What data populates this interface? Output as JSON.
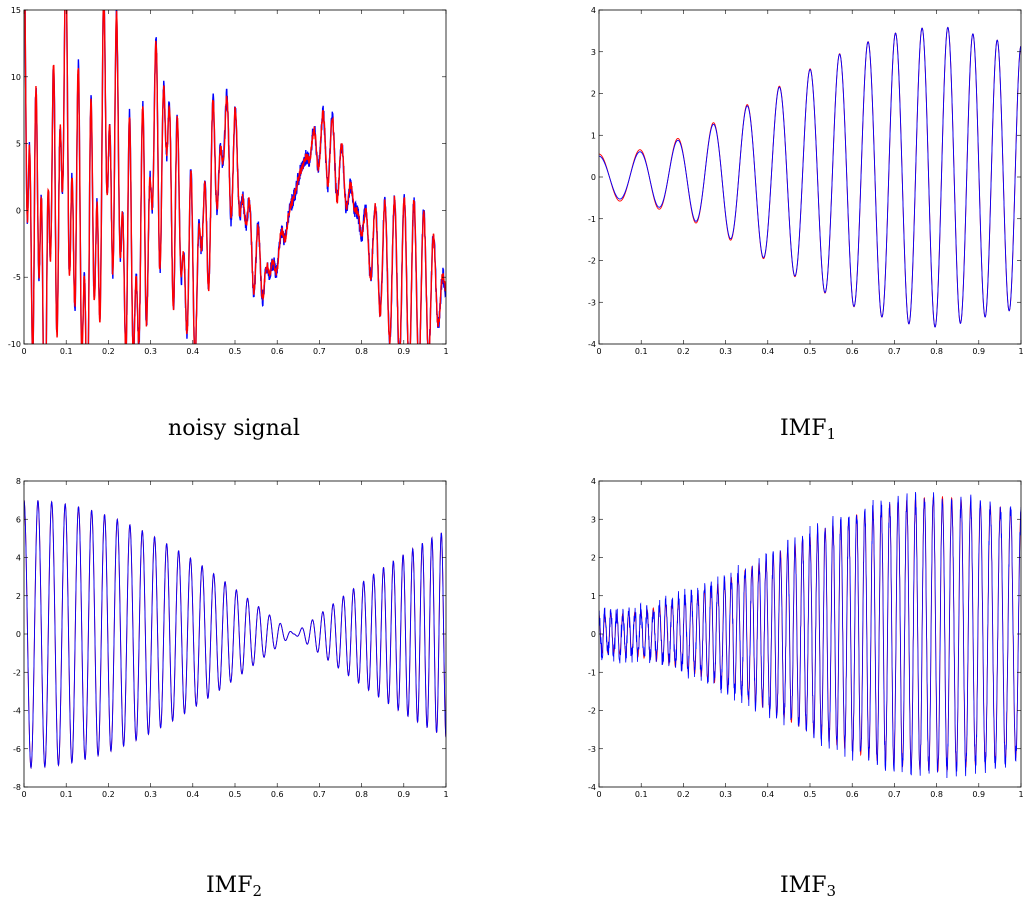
{
  "colors": {
    "estimate": "#ff0000",
    "original": "#0000ff",
    "axes": "#000000"
  },
  "captions": [
    {
      "text": "noisy signal",
      "sub": ""
    },
    {
      "text": "IMF",
      "sub": "1"
    },
    {
      "text": "IMF",
      "sub": "2"
    },
    {
      "text": "IMF",
      "sub": "3"
    }
  ],
  "chart_data": [
    {
      "type": "line",
      "title": "",
      "xlim": [
        0,
        1
      ],
      "ylim": [
        -10,
        15
      ],
      "x_ticks": [
        0,
        0.1,
        0.2,
        0.3,
        0.4,
        0.5,
        0.6,
        0.7,
        0.8,
        0.9,
        1
      ],
      "y_ticks": [
        -10,
        -5,
        0,
        5,
        10,
        15
      ],
      "grid": false,
      "series": [
        {
          "color": "#0000ff",
          "components": [
            {
              "a0": 6.0,
              "a1": -3.0,
              "f0": 11,
              "f1": 0
            },
            {
              "a0": 7.0,
              "a1": -8.0,
              "f0": 30,
              "f1": 45
            },
            {
              "a0": 0.5,
              "a1": 1.5,
              "f0": 72,
              "f1": 40
            }
          ],
          "noise": 0.6,
          "stroke_width": 1.4
        },
        {
          "color": "#ff0000",
          "components": [
            {
              "a0": 6.0,
              "a1": -3.0,
              "f0": 11,
              "f1": 0
            },
            {
              "a0": 7.0,
              "a1": -8.0,
              "f0": 30,
              "f1": 45
            },
            {
              "a0": 0.5,
              "a1": 1.5,
              "f0": 72,
              "f1": 40
            }
          ],
          "noise": 0.3,
          "stroke_width": 1.4
        }
      ]
    },
    {
      "type": "line",
      "title": "",
      "xlim": [
        0,
        1
      ],
      "ylim": [
        -4,
        4
      ],
      "x_ticks": [
        0,
        0.1,
        0.2,
        0.3,
        0.4,
        0.5,
        0.6,
        0.7,
        0.8,
        0.9,
        1
      ],
      "y_ticks": [
        -4,
        -3,
        -2,
        -1,
        0,
        1,
        2,
        3,
        4
      ],
      "grid": false,
      "series": [
        {
          "color": "#ff0000",
          "components": [
            {
              "a0": 0.55,
              "a1": 5.0,
              "f0": 10,
              "f1": 18,
              "envelope": "bell",
              "end": 2.6
            }
          ],
          "noise": 0,
          "stroke_width": 0.9
        },
        {
          "color": "#0000ff",
          "components": [
            {
              "a0": 0.5,
              "a1": 5.0,
              "f0": 10,
              "f1": 18,
              "envelope": "bell",
              "end": 2.6
            }
          ],
          "noise": 0,
          "stroke_width": 0.9
        }
      ]
    },
    {
      "type": "line",
      "title": "",
      "xlim": [
        0,
        1
      ],
      "ylim": [
        -8,
        8
      ],
      "x_ticks": [
        0,
        0.1,
        0.2,
        0.3,
        0.4,
        0.5,
        0.6,
        0.7,
        0.8,
        0.9,
        1
      ],
      "y_ticks": [
        -8,
        -6,
        -4,
        -2,
        0,
        2,
        4,
        6,
        8
      ],
      "grid": false,
      "series": [
        {
          "color": "#ff0000",
          "components": [
            {
              "a0": 7.0,
              "a1": -8.0,
              "f0": 30,
              "f1": 45
            }
          ],
          "noise": 0,
          "stroke_width": 0.9
        },
        {
          "color": "#0000ff",
          "components": [
            {
              "a0": 7.0,
              "a1": -8.0,
              "f0": 30,
              "f1": 45
            }
          ],
          "noise": 0,
          "stroke_width": 0.9
        }
      ]
    },
    {
      "type": "line",
      "title": "",
      "xlim": [
        0,
        1
      ],
      "ylim": [
        -4,
        4
      ],
      "x_ticks": [
        0,
        0.1,
        0.2,
        0.3,
        0.4,
        0.5,
        0.6,
        0.7,
        0.8,
        0.9,
        1
      ],
      "y_ticks": [
        -4,
        -3,
        -2,
        -1,
        0,
        1,
        2,
        3,
        4
      ],
      "grid": false,
      "series": [
        {
          "color": "#ff0000",
          "components": [
            {
              "a0": 0.5,
              "a1": 6.5,
              "f0": 72,
              "f1": 40,
              "envelope": "bell",
              "end": 2.2
            }
          ],
          "noise": 0,
          "stroke_width": 0.8
        },
        {
          "color": "#0000ff",
          "components": [
            {
              "a0": 0.5,
              "a1": 6.5,
              "f0": 72,
              "f1": 40,
              "envelope": "bell",
              "end": 2.2
            }
          ],
          "noise": 0.25,
          "stroke_width": 0.8
        }
      ]
    }
  ]
}
